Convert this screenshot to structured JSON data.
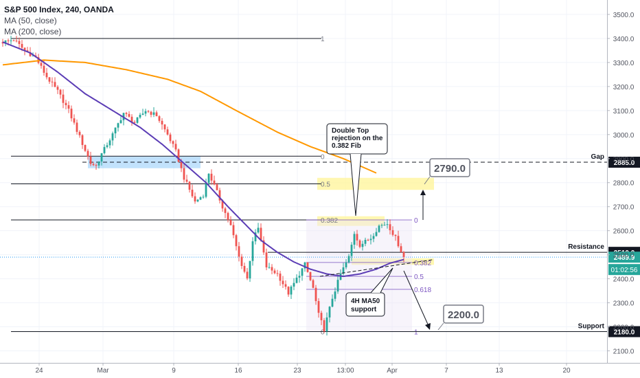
{
  "header": {
    "symbol_line": "S&P 500 Index, 240, OANDA",
    "ma50_label": "MA (50, close)",
    "ma200_label": "MA (200, close)"
  },
  "chart_data": {
    "type": "candlestick",
    "title": "S&P 500 Index, 240, OANDA",
    "ylim": [
      2050,
      3560
    ],
    "y_ticks": [
      2100,
      2200,
      2300,
      2400,
      2500,
      2600,
      2700,
      2800,
      2900,
      3000,
      3100,
      3200,
      3300,
      3400,
      3500
    ],
    "y_tick_labels": [
      "2100.0",
      "2200.0",
      "2300.0",
      "2400.0",
      "2500.0",
      "2600.0",
      "2700.0",
      "2800.0",
      "2900.0",
      "3000.0",
      "3100.0",
      "3200.0",
      "3300.0",
      "3400.0",
      "3500.0"
    ],
    "x_tick_labels": [
      "24",
      "Mar",
      "9",
      "16",
      "23",
      "13:00",
      "Apr",
      "7",
      "13",
      "20"
    ],
    "colors": {
      "up": "#26a69a",
      "down": "#ef5350",
      "ma50": "#5b3cb5",
      "ma200": "#ff9800",
      "fib_line": "#131722",
      "fib_purple": "#7e57c2",
      "highlight_yellow": "#fff59d",
      "highlight_blue": "#90caf9",
      "last_price_dot": "#2196f3"
    },
    "price_path": [
      [
        0,
        3385
      ],
      [
        4,
        3395
      ],
      [
        8,
        3350
      ],
      [
        12,
        3320
      ],
      [
        16,
        3240
      ],
      [
        20,
        3180
      ],
      [
        24,
        3100
      ],
      [
        28,
        2990
      ],
      [
        32,
        2880
      ],
      [
        34,
        2870
      ],
      [
        36,
        2920
      ],
      [
        40,
        3000
      ],
      [
        44,
        3090
      ],
      [
        48,
        3050
      ],
      [
        52,
        3100
      ],
      [
        56,
        3080
      ],
      [
        60,
        3000
      ],
      [
        63,
        2930
      ],
      [
        66,
        2820
      ],
      [
        70,
        2720
      ],
      [
        73,
        2750
      ],
      [
        75,
        2840
      ],
      [
        78,
        2760
      ],
      [
        80,
        2700
      ],
      [
        83,
        2620
      ],
      [
        86,
        2490
      ],
      [
        89,
        2400
      ],
      [
        91,
        2560
      ],
      [
        93,
        2610
      ],
      [
        96,
        2450
      ],
      [
        100,
        2420
      ],
      [
        104,
        2340
      ],
      [
        107,
        2400
      ],
      [
        110,
        2460
      ],
      [
        113,
        2360
      ],
      [
        115,
        2250
      ],
      [
        117,
        2190
      ],
      [
        120,
        2320
      ],
      [
        123,
        2420
      ],
      [
        126,
        2490
      ],
      [
        128,
        2590
      ],
      [
        130,
        2540
      ],
      [
        134,
        2570
      ],
      [
        137,
        2620
      ],
      [
        140,
        2630
      ],
      [
        143,
        2570
      ],
      [
        146,
        2490
      ]
    ],
    "ma50_path": [
      [
        0,
        3385
      ],
      [
        10,
        3340
      ],
      [
        20,
        3260
      ],
      [
        30,
        3170
      ],
      [
        40,
        3100
      ],
      [
        50,
        3030
      ],
      [
        58,
        2960
      ],
      [
        66,
        2880
      ],
      [
        74,
        2800
      ],
      [
        82,
        2700
      ],
      [
        88,
        2630
      ],
      [
        94,
        2560
      ],
      [
        100,
        2510
      ],
      [
        106,
        2470
      ],
      [
        112,
        2440
      ],
      [
        118,
        2420
      ],
      [
        124,
        2410
      ],
      [
        130,
        2420
      ],
      [
        136,
        2440
      ],
      [
        141,
        2465
      ],
      [
        146,
        2480
      ]
    ],
    "ma200_path": [
      [
        0,
        3290
      ],
      [
        15,
        3310
      ],
      [
        30,
        3300
      ],
      [
        45,
        3270
      ],
      [
        60,
        3230
      ],
      [
        72,
        3180
      ],
      [
        85,
        3100
      ],
      [
        100,
        3010
      ],
      [
        112,
        2950
      ],
      [
        124,
        2900
      ],
      [
        136,
        2840
      ]
    ],
    "fibonacci_left": [
      {
        "ratio": "1",
        "price": 3400
      },
      {
        "ratio": "0",
        "price": 2910
      },
      {
        "ratio": "0.5",
        "price": 2795
      },
      {
        "ratio": "0.382",
        "price": 2645
      },
      {
        "ratio": "0",
        "price": 2180
      }
    ],
    "fibonacci_right": [
      {
        "ratio": "0",
        "price": 2645
      },
      {
        "ratio": "0.382",
        "price": 2468
      },
      {
        "ratio": "0.5",
        "price": 2410
      },
      {
        "ratio": "0.618",
        "price": 2356
      },
      {
        "ratio": "1",
        "price": 2180
      }
    ],
    "levels": [
      {
        "name": "Gap",
        "price": 2885,
        "price_label": "2885.0",
        "style": "dashed"
      },
      {
        "name": "Resistance",
        "price": 2510,
        "price_label": "2510.0",
        "style": "solid"
      },
      {
        "name": "Support",
        "price": 2180,
        "price_label": "2180.0",
        "style": "solid"
      }
    ],
    "current_price": {
      "price": 2489.9,
      "label": "2489.9",
      "countdown": "01:02:56"
    },
    "annotations": {
      "double_top": "Double Top rejection on the 0.382 Fib",
      "ma50_support": "4H MA50 support",
      "target_up": "2790.0",
      "target_down": "2200.0"
    }
  }
}
